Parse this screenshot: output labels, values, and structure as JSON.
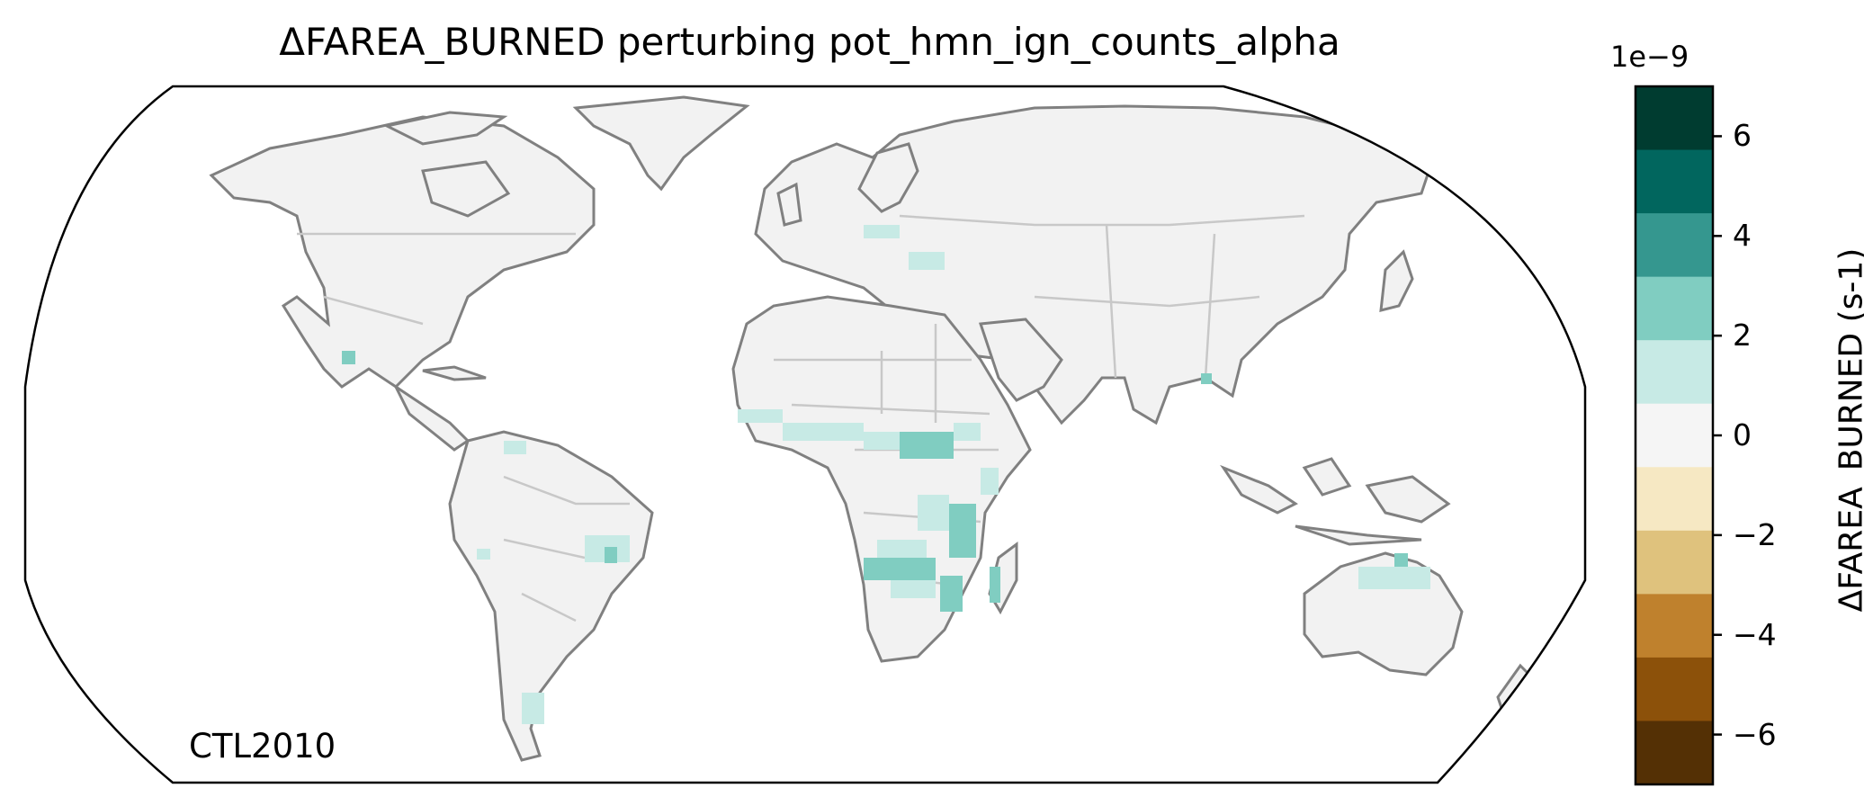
{
  "title": "ΔFAREA_BURNED perturbing pot_hmn_ign_counts_alpha",
  "corner_label": "CTL2010",
  "colorbar": {
    "exponent_label": "1e−9",
    "label": "ΔFAREA_BURNED (s-1)",
    "ticks": [
      "6",
      "4",
      "2",
      "0",
      "−2",
      "−4",
      "−6"
    ],
    "tick_values": [
      6,
      4,
      2,
      0,
      -2,
      -4,
      -6
    ],
    "range": [
      -7,
      7
    ],
    "band_colors": [
      "#003c30",
      "#01665e",
      "#35978f",
      "#80cdc1",
      "#c7eae5",
      "#f5f5f5",
      "#f6e8c3",
      "#dfc27d",
      "#bf812d",
      "#8c510a",
      "#543005"
    ]
  },
  "map": {
    "projection": "Robinson",
    "land_color": "#f2f2f2",
    "coast_color": "#808080",
    "border_color": "#c8c8c8",
    "highlight_colors": [
      "#c7eae5",
      "#80cdc1"
    ]
  }
}
